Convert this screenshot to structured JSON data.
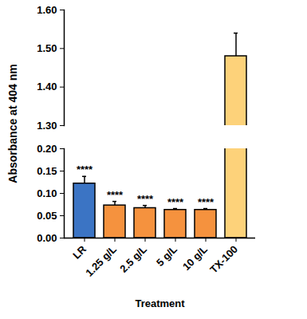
{
  "chart_data": {
    "type": "bar",
    "y_label": "Absorbance at 404 nm",
    "x_label": "Treatment",
    "categories": [
      "LR",
      "1.25 g/L",
      "2.5 g/L",
      "5 g/L",
      "10 g/L",
      "TX-100"
    ],
    "values": [
      0.122,
      0.073,
      0.067,
      0.063,
      0.063,
      1.48
    ],
    "error": [
      0.016,
      0.009,
      0.006,
      0.003,
      0.003,
      0.06
    ],
    "colors": [
      "#3b74c4",
      "#f5923e",
      "#f5923e",
      "#f5923e",
      "#f5923e",
      "#fdd27a"
    ],
    "annotations": [
      "****",
      "****",
      "****",
      "****",
      "****",
      null
    ],
    "panels": [
      {
        "ylim": [
          1.3,
          1.6
        ],
        "yticks": [
          {
            "value": 1.3,
            "label": "1.30"
          },
          {
            "value": 1.4,
            "label": "1.40"
          },
          {
            "value": 1.5,
            "label": "1.50"
          },
          {
            "value": 1.6,
            "label": "1.60"
          }
        ]
      },
      {
        "ylim": [
          0,
          0.2
        ],
        "yticks": [
          {
            "value": 0,
            "label": "0.00"
          },
          0.05,
          {
            "value": 0.1,
            "label": "0.10"
          },
          0.15,
          {
            "value": 0.2,
            "label": "0.20"
          }
        ]
      }
    ]
  }
}
